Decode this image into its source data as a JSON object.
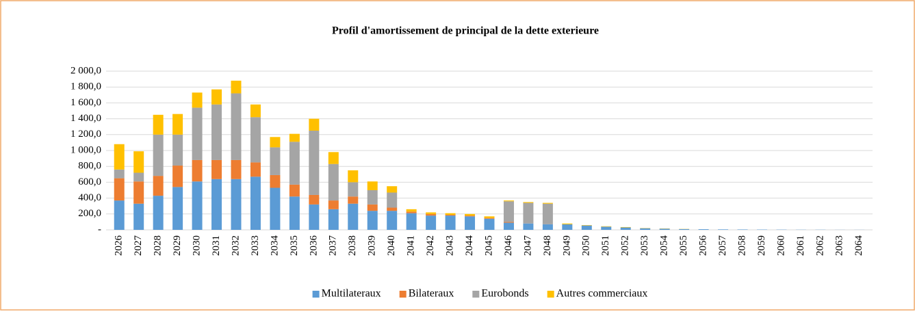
{
  "chart_data": {
    "type": "stacked_bar",
    "title": "Profil d'amortissement de principal de la dette exterieure",
    "categories": [
      "2026",
      "2027",
      "2028",
      "2029",
      "2030",
      "2031",
      "2032",
      "2033",
      "2034",
      "2035",
      "2036",
      "2037",
      "2038",
      "2039",
      "2040",
      "2041",
      "2042",
      "2043",
      "2044",
      "2045",
      "2046",
      "2047",
      "2048",
      "2049",
      "2050",
      "2051",
      "2052",
      "2053",
      "2054",
      "2055",
      "2056",
      "2057",
      "2058",
      "2059",
      "2060",
      "2061",
      "2062",
      "2063",
      "2064"
    ],
    "series": [
      {
        "name": "Multilateraux",
        "color": "#5b9bd5",
        "values": [
          370,
          330,
          430,
          540,
          610,
          640,
          640,
          670,
          530,
          420,
          320,
          260,
          330,
          240,
          240,
          210,
          180,
          180,
          170,
          140,
          90,
          80,
          70,
          70,
          55,
          40,
          30,
          20,
          15,
          10,
          8,
          6,
          5,
          4,
          3,
          2,
          2,
          1,
          1
        ]
      },
      {
        "name": "Bilateraux",
        "color": "#ed7d31",
        "values": [
          280,
          280,
          250,
          270,
          270,
          240,
          240,
          180,
          160,
          150,
          120,
          110,
          90,
          80,
          40,
          20,
          20,
          10,
          10,
          10,
          10,
          0,
          0,
          0,
          0,
          0,
          0,
          0,
          0,
          0,
          0,
          0,
          0,
          0,
          0,
          0,
          0,
          0,
          0
        ]
      },
      {
        "name": "Eurobonds",
        "color": "#a5a5a5",
        "values": [
          110,
          110,
          520,
          390,
          660,
          700,
          840,
          570,
          350,
          540,
          810,
          460,
          180,
          180,
          190,
          0,
          0,
          0,
          0,
          0,
          260,
          260,
          260,
          0,
          0,
          0,
          0,
          0,
          0,
          0,
          0,
          0,
          0,
          0,
          0,
          0,
          0,
          0,
          0
        ]
      },
      {
        "name": "Autres commerciaux",
        "color": "#ffc000",
        "values": [
          320,
          270,
          250,
          260,
          190,
          190,
          160,
          160,
          130,
          100,
          150,
          150,
          150,
          110,
          80,
          30,
          20,
          20,
          20,
          20,
          10,
          10,
          10,
          10,
          5,
          5,
          5,
          3,
          3,
          2,
          0,
          0,
          0,
          0,
          0,
          0,
          0,
          0,
          0
        ]
      }
    ],
    "ylim": [
      0,
      2000
    ],
    "yticks": [
      {
        "value": 0,
        "label": "-"
      },
      {
        "value": 200,
        "label": "200,0"
      },
      {
        "value": 400,
        "label": "400,0"
      },
      {
        "value": 600,
        "label": "600,0"
      },
      {
        "value": 800,
        "label": "800,0"
      },
      {
        "value": 1000,
        "label": "1 000,0"
      },
      {
        "value": 1200,
        "label": "1 200,0"
      },
      {
        "value": 1400,
        "label": "1 400,0"
      },
      {
        "value": 1600,
        "label": "1 600,0"
      },
      {
        "value": 1800,
        "label": "1 800,0"
      },
      {
        "value": 2000,
        "label": "2 000,0"
      }
    ],
    "grid": true,
    "legend": "bottom"
  }
}
